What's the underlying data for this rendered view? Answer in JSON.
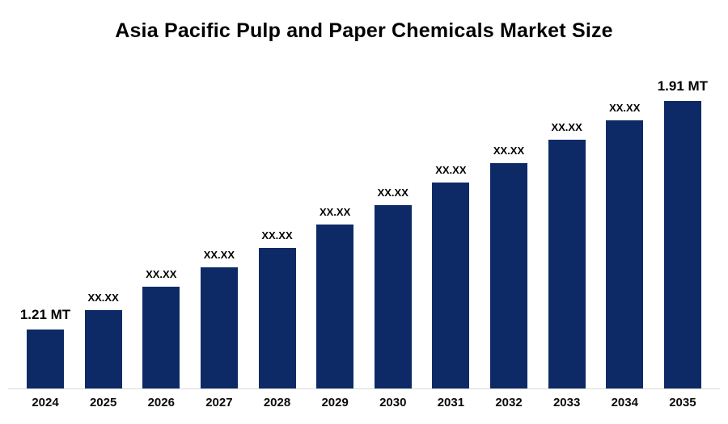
{
  "chart_data": {
    "type": "bar",
    "title": "Asia Pacific Pulp and Paper Chemicals Market Size",
    "unit": "MT",
    "categories": [
      "2024",
      "2025",
      "2026",
      "2027",
      "2028",
      "2029",
      "2030",
      "2031",
      "2032",
      "2033",
      "2034",
      "2035"
    ],
    "values": [
      1.21,
      1.27,
      1.34,
      1.4,
      1.46,
      1.53,
      1.59,
      1.66,
      1.72,
      1.79,
      1.85,
      1.91
    ],
    "bar_labels": [
      "1.21 MT",
      "XX.XX",
      "XX.XX",
      "XX.XX",
      "XX.XX",
      "XX.XX",
      "XX.XX",
      "XX.XX",
      "XX.XX",
      "XX.XX",
      "XX.XX",
      "1.91 MT"
    ],
    "first_value_label": "1.21 MT",
    "last_value_label": "1.91 MT",
    "bar_color": "#0d2a66",
    "label_color": "#000000",
    "axis_line_color": "#d9d9d9",
    "ylim": [
      1.03,
      1.95
    ],
    "xlabel": "",
    "ylabel": "",
    "grid": false,
    "legend": false
  }
}
